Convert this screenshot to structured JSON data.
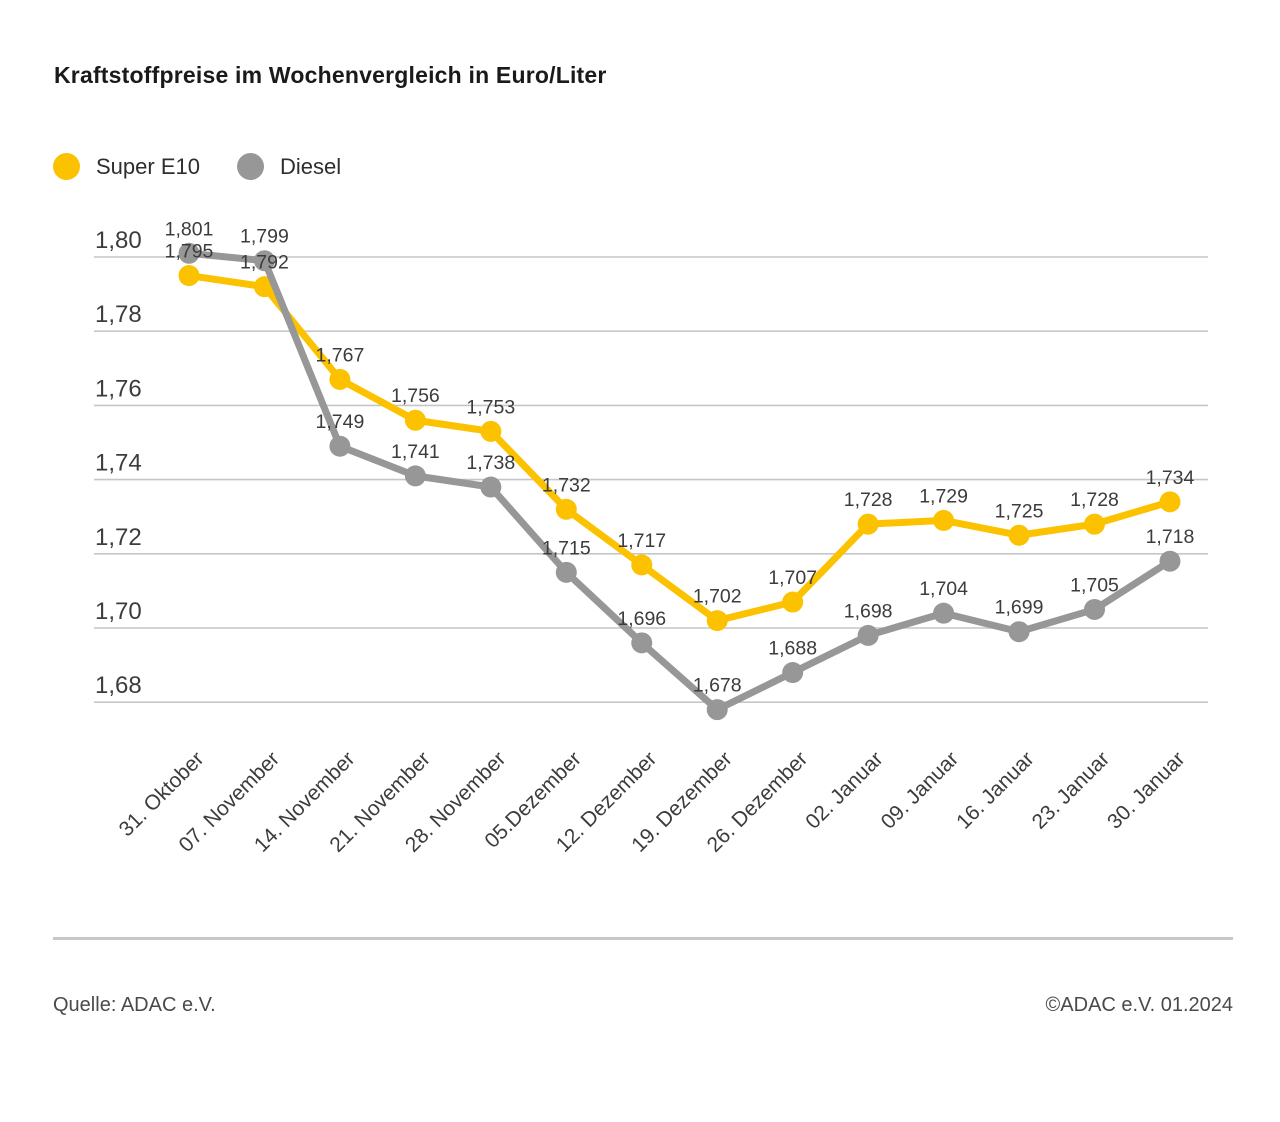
{
  "title": "Kraftstoffpreise im Wochenvergleich in Euro/Liter",
  "legend": {
    "items": [
      {
        "label": "Super E10",
        "color": "#fcc200"
      },
      {
        "label": "Diesel",
        "color": "#979797"
      }
    ]
  },
  "chart_data": {
    "type": "line",
    "title": "Kraftstoffpreise im Wochenvergleich in Euro/Liter",
    "xlabel": "",
    "ylabel": "Euro/Liter",
    "categories": [
      "31. Oktober",
      "07. November",
      "14. November",
      "21. November",
      "28. November",
      "05.Dezember",
      "12. Dezember",
      "19. Dezember",
      "26. Dezember",
      "02. Januar",
      "09. Januar",
      "16. Januar",
      "23. Januar",
      "30. Januar"
    ],
    "series": [
      {
        "name": "Super E10",
        "color": "#fcc200",
        "values": [
          1.795,
          1.792,
          1.767,
          1.756,
          1.753,
          1.732,
          1.717,
          1.702,
          1.707,
          1.728,
          1.729,
          1.725,
          1.728,
          1.734
        ]
      },
      {
        "name": "Diesel",
        "color": "#979797",
        "values": [
          1.801,
          1.799,
          1.749,
          1.741,
          1.738,
          1.715,
          1.696,
          1.678,
          1.688,
          1.698,
          1.704,
          1.699,
          1.705,
          1.718
        ]
      }
    ],
    "y_ticks": [
      1.8,
      1.78,
      1.76,
      1.74,
      1.72,
      1.7,
      1.68
    ],
    "ylim": [
      1.67,
      1.81
    ],
    "grid": true,
    "legend_position": "top-left",
    "decimal_separator": ",",
    "point_labels_visible": true
  },
  "colors": {
    "grid": "#c6c6c6",
    "axis_text": "#3c3c3c",
    "value_label_text": "#3c3c3c"
  },
  "footer": {
    "source": "Quelle: ADAC e.V.",
    "copyright": "©ADAC e.V. 01.2024"
  }
}
